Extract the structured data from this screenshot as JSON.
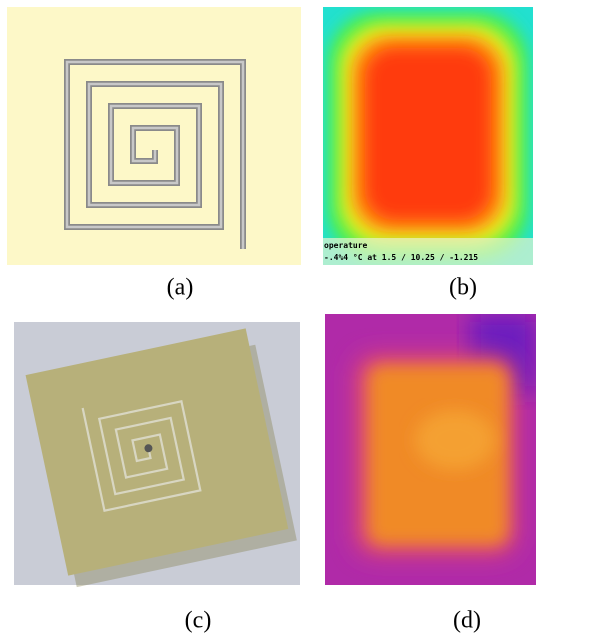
{
  "panels": [
    {
      "label": "(a)"
    },
    {
      "label": "(b)"
    },
    {
      "label": "(c)"
    },
    {
      "label": "(d)"
    }
  ],
  "thermal_overlay": [
    "operature",
    "-.4%4 °C at 1.5 / 10.25 / -1.215"
  ]
}
